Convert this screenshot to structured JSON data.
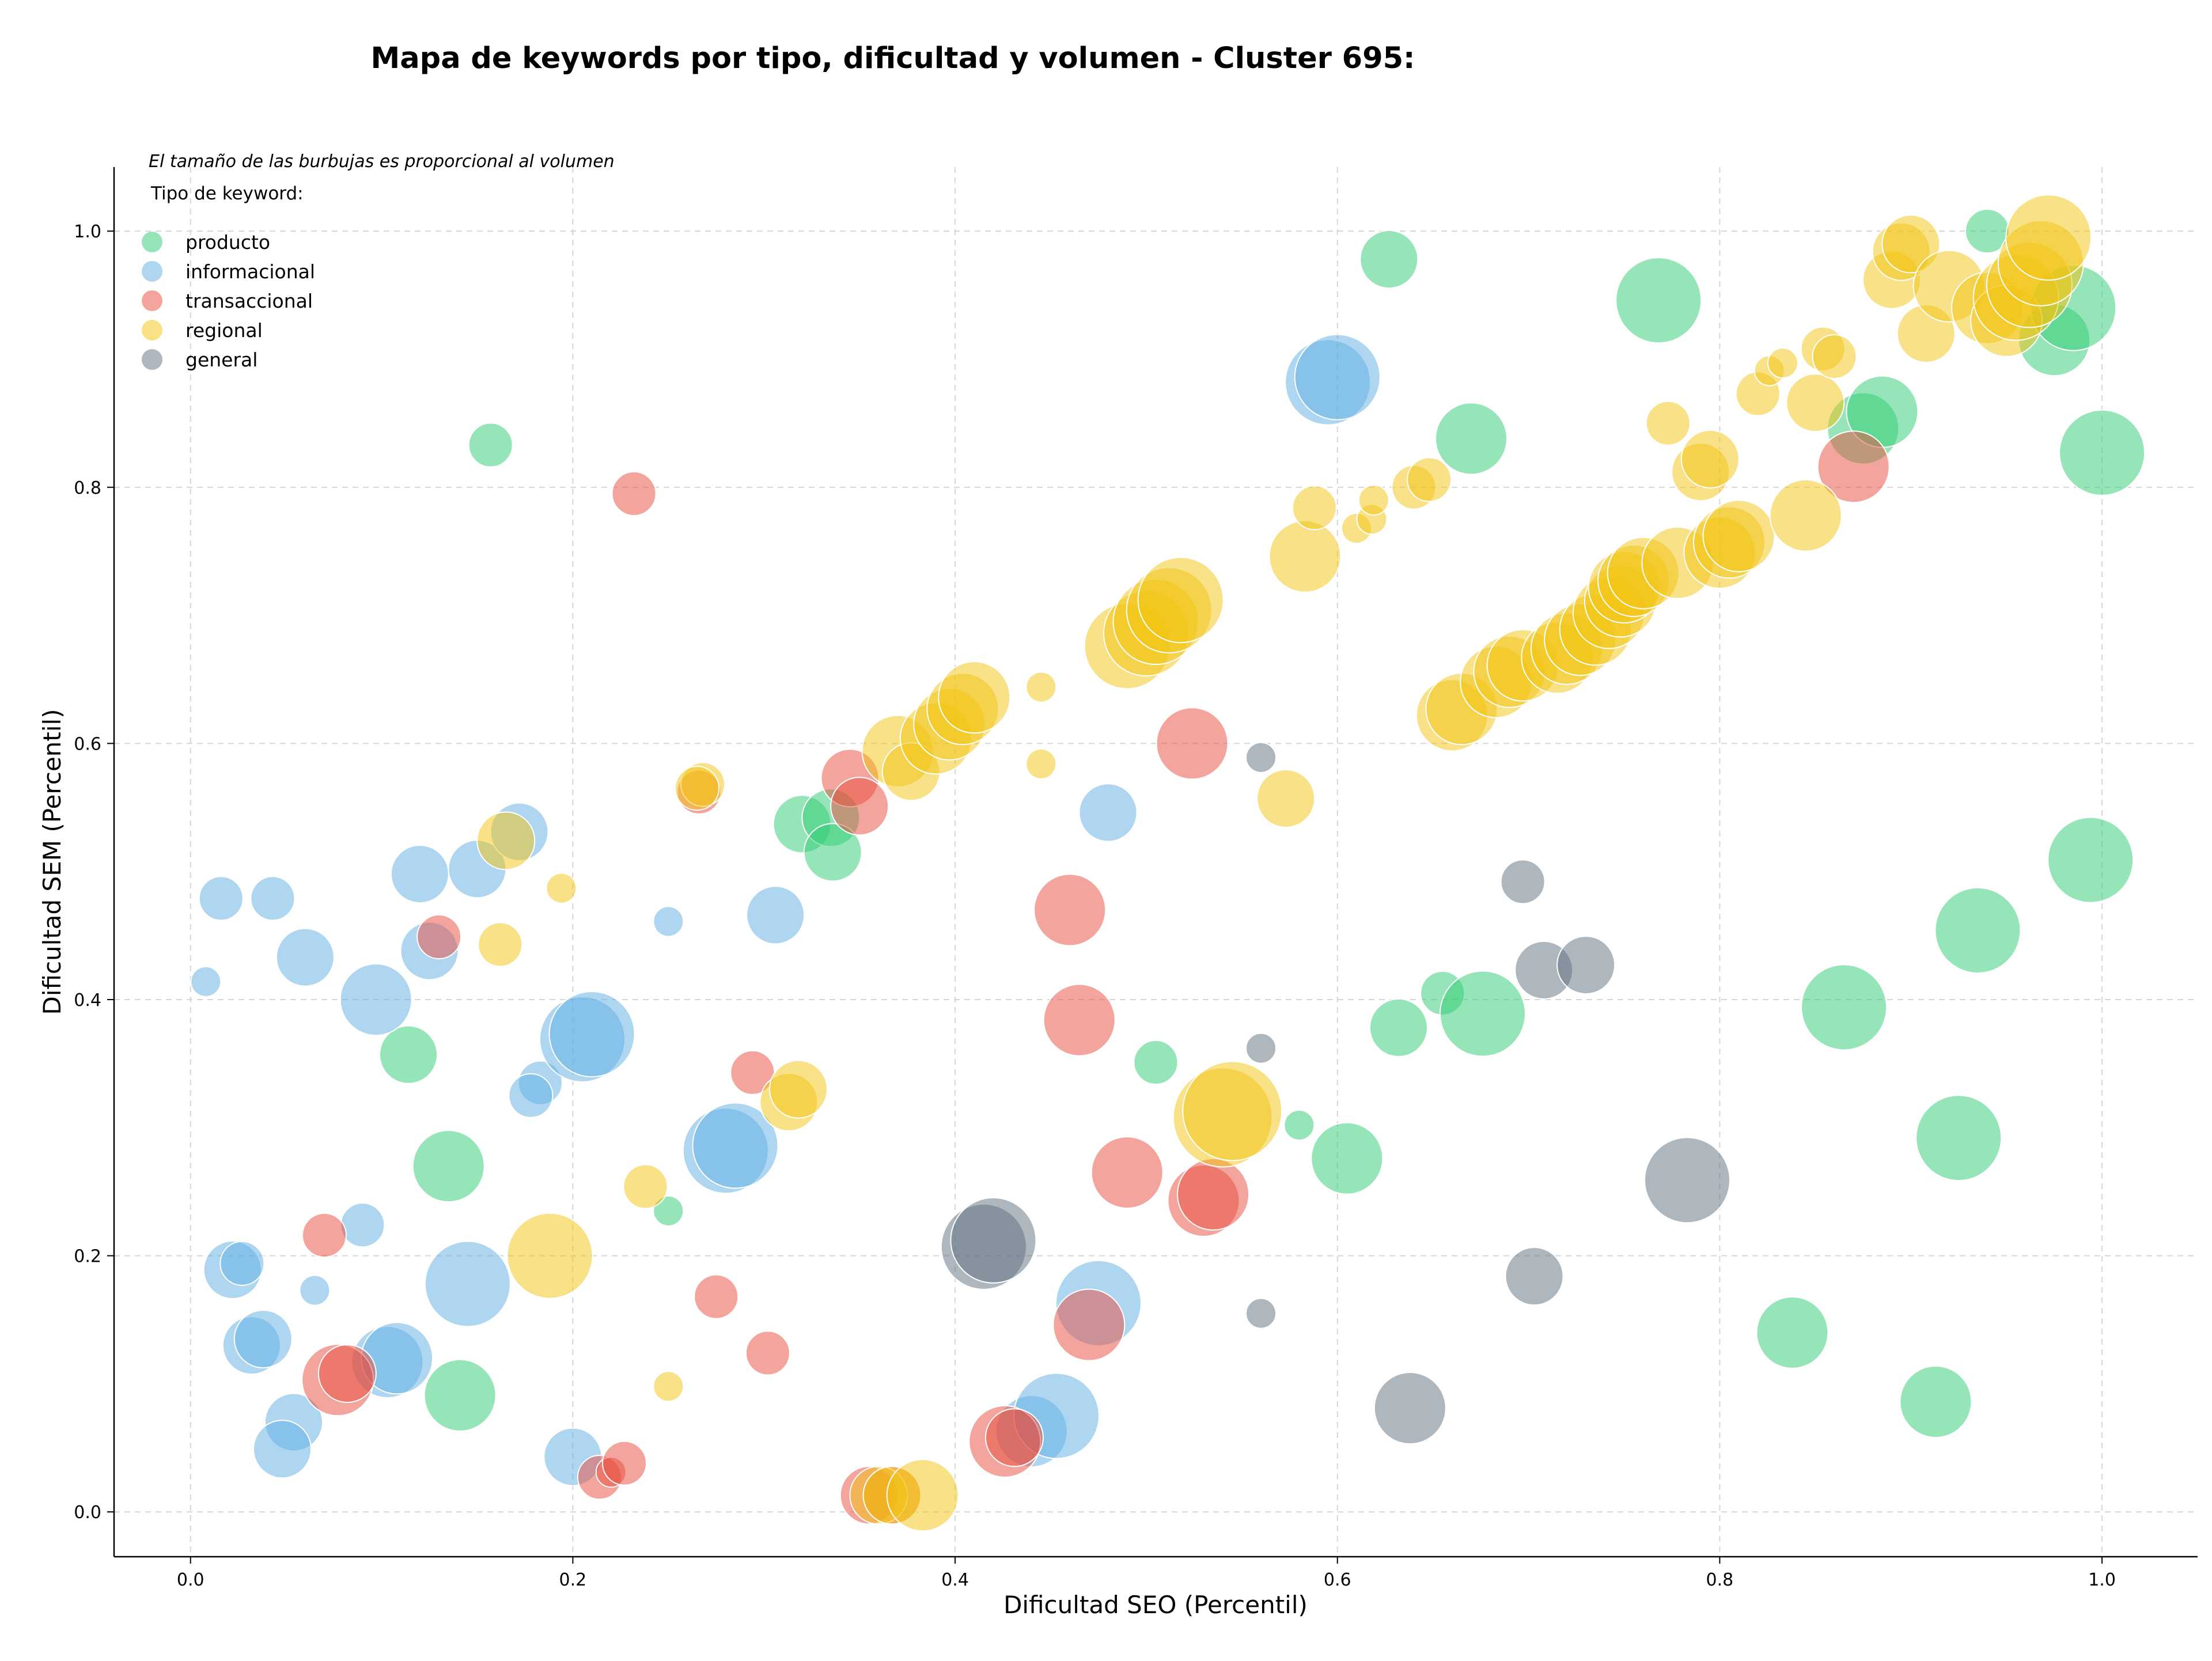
{
  "chart_data": {
    "type": "scatter",
    "title": "Mapa de keywords por tipo, dificultad y volumen - Cluster 695:",
    "xlabel": "Dificultad SEO (Percentil)",
    "ylabel": "Dificultad SEM (Percentil)",
    "xlim": [
      -0.04,
      1.05
    ],
    "ylim": [
      -0.035,
      1.05
    ],
    "xticks": [
      "0.0",
      "0.2",
      "0.4",
      "0.6",
      "0.8",
      "1.0"
    ],
    "yticks": [
      "0.0",
      "0.2",
      "0.4",
      "0.6",
      "0.8",
      "1.0"
    ],
    "grid": true,
    "annotation": "El tamaño de las burbujas es proporcional al volumen",
    "legend_title": "Tipo de keyword:",
    "legend_position": "top-left",
    "series": [
      {
        "name": "producto",
        "color": "#2ecc71",
        "points": [
          [
            0.157,
            0.833,
            2
          ],
          [
            0.114,
            0.357,
            3
          ],
          [
            0.135,
            0.27,
            4
          ],
          [
            0.141,
            0.091,
            4
          ],
          [
            0.32,
            0.537,
            3
          ],
          [
            0.335,
            0.542,
            3
          ],
          [
            0.336,
            0.515,
            3
          ],
          [
            0.25,
            0.235,
            1
          ],
          [
            0.505,
            0.351,
            2
          ],
          [
            0.58,
            0.302,
            1
          ],
          [
            0.605,
            0.276,
            4
          ],
          [
            0.627,
            0.978,
            3
          ],
          [
            0.632,
            0.378,
            3
          ],
          [
            0.655,
            0.405,
            2
          ],
          [
            0.67,
            0.838,
            4
          ],
          [
            0.676,
            0.389,
            5
          ],
          [
            0.768,
            0.946,
            5
          ],
          [
            0.838,
            0.14,
            4
          ],
          [
            0.865,
            0.394,
            5
          ],
          [
            0.875,
            0.846,
            4
          ],
          [
            0.885,
            0.859,
            4
          ],
          [
            0.913,
            0.086,
            4
          ],
          [
            0.925,
            0.292,
            5
          ],
          [
            0.935,
            0.454,
            5
          ],
          [
            0.94,
            1.0,
            2
          ],
          [
            0.975,
            0.915,
            4
          ],
          [
            0.985,
            0.94,
            5
          ],
          [
            0.994,
            0.509,
            5
          ],
          [
            1.0,
            0.827,
            5
          ]
        ]
      },
      {
        "name": "informacional",
        "color": "#5dade2",
        "points": [
          [
            0.008,
            0.414,
            1
          ],
          [
            0.016,
            0.479,
            2
          ],
          [
            0.043,
            0.479,
            2
          ],
          [
            0.06,
            0.433,
            3
          ],
          [
            0.097,
            0.4,
            4
          ],
          [
            0.12,
            0.498,
            3
          ],
          [
            0.125,
            0.438,
            3
          ],
          [
            0.15,
            0.502,
            3
          ],
          [
            0.172,
            0.531,
            3
          ],
          [
            0.183,
            0.335,
            2
          ],
          [
            0.178,
            0.325,
            2
          ],
          [
            0.205,
            0.369,
            5
          ],
          [
            0.21,
            0.373,
            5
          ],
          [
            0.25,
            0.461,
            1
          ],
          [
            0.306,
            0.466,
            3
          ],
          [
            0.28,
            0.282,
            5
          ],
          [
            0.285,
            0.286,
            5
          ],
          [
            0.09,
            0.224,
            2
          ],
          [
            0.022,
            0.189,
            3
          ],
          [
            0.027,
            0.194,
            2
          ],
          [
            0.032,
            0.13,
            3
          ],
          [
            0.038,
            0.135,
            3
          ],
          [
            0.054,
            0.07,
            3
          ],
          [
            0.048,
            0.049,
            3
          ],
          [
            0.065,
            0.173,
            1
          ],
          [
            0.103,
            0.117,
            4
          ],
          [
            0.108,
            0.12,
            4
          ],
          [
            0.145,
            0.178,
            5
          ],
          [
            0.2,
            0.043,
            3
          ],
          [
            0.48,
            0.546,
            3
          ],
          [
            0.475,
            0.163,
            5
          ],
          [
            0.44,
            0.063,
            4
          ],
          [
            0.453,
            0.075,
            5
          ],
          [
            0.595,
            0.882,
            5
          ],
          [
            0.6,
            0.886,
            5
          ]
        ]
      },
      {
        "name": "transaccional",
        "color": "#e74c3c",
        "points": [
          [
            0.232,
            0.795,
            2
          ],
          [
            0.13,
            0.449,
            2
          ],
          [
            0.07,
            0.216,
            2
          ],
          [
            0.077,
            0.103,
            4
          ],
          [
            0.082,
            0.108,
            3
          ],
          [
            0.214,
            0.027,
            2
          ],
          [
            0.22,
            0.031,
            1
          ],
          [
            0.227,
            0.038,
            2
          ],
          [
            0.266,
            0.562,
            2
          ],
          [
            0.275,
            0.168,
            2
          ],
          [
            0.294,
            0.343,
            2
          ],
          [
            0.302,
            0.124,
            2
          ],
          [
            0.345,
            0.573,
            3
          ],
          [
            0.35,
            0.551,
            3
          ],
          [
            0.355,
            0.013,
            3
          ],
          [
            0.367,
            0.013,
            3
          ],
          [
            0.426,
            0.055,
            4
          ],
          [
            0.431,
            0.058,
            3
          ],
          [
            0.46,
            0.47,
            4
          ],
          [
            0.465,
            0.384,
            4
          ],
          [
            0.47,
            0.146,
            4
          ],
          [
            0.49,
            0.265,
            4
          ],
          [
            0.524,
            0.6,
            4
          ],
          [
            0.53,
            0.243,
            4
          ],
          [
            0.535,
            0.248,
            4
          ],
          [
            0.87,
            0.816,
            4
          ]
        ]
      },
      {
        "name": "regional",
        "color": "#f1c40f",
        "points": [
          [
            0.165,
            0.524,
            3
          ],
          [
            0.194,
            0.487,
            1
          ],
          [
            0.162,
            0.443,
            2
          ],
          [
            0.188,
            0.2,
            5
          ],
          [
            0.238,
            0.254,
            2
          ],
          [
            0.25,
            0.098,
            1
          ],
          [
            0.268,
            0.568,
            2
          ],
          [
            0.265,
            0.565,
            2
          ],
          [
            0.313,
            0.32,
            3
          ],
          [
            0.318,
            0.33,
            3
          ],
          [
            0.36,
            0.013,
            3
          ],
          [
            0.367,
            0.013,
            3
          ],
          [
            0.383,
            0.013,
            4
          ],
          [
            0.37,
            0.594,
            4
          ],
          [
            0.377,
            0.578,
            3
          ],
          [
            0.39,
            0.604,
            4
          ],
          [
            0.397,
            0.615,
            4
          ],
          [
            0.404,
            0.627,
            4
          ],
          [
            0.41,
            0.636,
            4
          ],
          [
            0.445,
            0.644,
            1
          ],
          [
            0.445,
            0.584,
            1
          ],
          [
            0.49,
            0.676,
            5
          ],
          [
            0.5,
            0.686,
            5
          ],
          [
            0.505,
            0.695,
            5
          ],
          [
            0.512,
            0.704,
            5
          ],
          [
            0.518,
            0.712,
            5
          ],
          [
            0.54,
            0.308,
            6
          ],
          [
            0.545,
            0.313,
            6
          ],
          [
            0.573,
            0.557,
            3
          ],
          [
            0.583,
            0.746,
            4
          ],
          [
            0.588,
            0.784,
            2
          ],
          [
            0.61,
            0.768,
            1
          ],
          [
            0.618,
            0.775,
            1
          ],
          [
            0.619,
            0.79,
            1
          ],
          [
            0.64,
            0.8,
            2
          ],
          [
            0.648,
            0.806,
            2
          ],
          [
            0.66,
            0.622,
            4
          ],
          [
            0.665,
            0.627,
            4
          ],
          [
            0.683,
            0.648,
            4
          ],
          [
            0.69,
            0.656,
            4
          ],
          [
            0.697,
            0.661,
            4
          ],
          [
            0.715,
            0.667,
            4
          ],
          [
            0.72,
            0.674,
            4
          ],
          [
            0.727,
            0.681,
            4
          ],
          [
            0.735,
            0.689,
            4
          ],
          [
            0.742,
            0.702,
            4
          ],
          [
            0.748,
            0.711,
            4
          ],
          [
            0.75,
            0.722,
            4
          ],
          [
            0.755,
            0.727,
            4
          ],
          [
            0.76,
            0.733,
            4
          ],
          [
            0.773,
            0.85,
            2
          ],
          [
            0.778,
            0.741,
            4
          ],
          [
            0.79,
            0.812,
            3
          ],
          [
            0.795,
            0.822,
            3
          ],
          [
            0.8,
            0.749,
            4
          ],
          [
            0.805,
            0.757,
            4
          ],
          [
            0.81,
            0.762,
            4
          ],
          [
            0.82,
            0.873,
            2
          ],
          [
            0.826,
            0.891,
            1
          ],
          [
            0.833,
            0.897,
            1
          ],
          [
            0.845,
            0.778,
            4
          ],
          [
            0.85,
            0.866,
            3
          ],
          [
            0.854,
            0.908,
            2
          ],
          [
            0.86,
            0.902,
            2
          ],
          [
            0.89,
            0.962,
            3
          ],
          [
            0.895,
            0.984,
            3
          ],
          [
            0.9,
            0.99,
            3
          ],
          [
            0.908,
            0.92,
            3
          ],
          [
            0.92,
            0.957,
            4
          ],
          [
            0.94,
            0.94,
            4
          ],
          [
            0.95,
            0.93,
            4
          ],
          [
            0.955,
            0.948,
            5
          ],
          [
            0.962,
            0.958,
            5
          ],
          [
            0.968,
            0.975,
            5
          ],
          [
            0.972,
            0.995,
            5
          ]
        ]
      },
      {
        "name": "general",
        "color": "#5d6d7e",
        "points": [
          [
            0.56,
            0.589,
            1
          ],
          [
            0.56,
            0.362,
            1
          ],
          [
            0.56,
            0.155,
            1
          ],
          [
            0.415,
            0.207,
            5
          ],
          [
            0.42,
            0.212,
            5
          ],
          [
            0.638,
            0.081,
            4
          ],
          [
            0.697,
            0.492,
            2
          ],
          [
            0.703,
            0.184,
            3
          ],
          [
            0.708,
            0.423,
            3
          ],
          [
            0.73,
            0.427,
            3
          ],
          [
            0.783,
            0.259,
            5
          ]
        ]
      }
    ]
  }
}
